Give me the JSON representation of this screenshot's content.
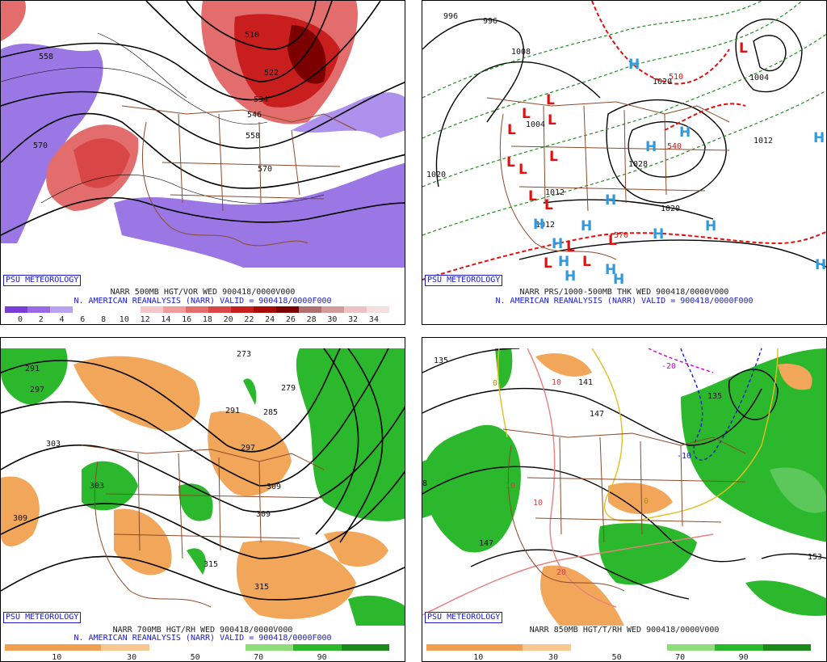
{
  "panels": [
    {
      "id": "p1",
      "footer": "PSU METEOROLOGY",
      "title": "NARR 500MB HGT/VOR WED 900418/0000V000",
      "subtitle": "N. AMERICAN REANALYSIS (NARR) VALID = 900418/0000F000",
      "colorbar": {
        "colors": [
          "#7a3cd6",
          "#9a6ae6",
          "#b9a2f0",
          "#ffffff",
          "#ffffff",
          "#ffffff",
          "#f3c7c7",
          "#ee9b9b",
          "#e36d6d",
          "#d84646",
          "#c81e1e",
          "#a80a0a",
          "#7d0000",
          "#b07070",
          "#d39a9a",
          "#eec2c2",
          "#f7dede"
        ],
        "ticks": [
          "0",
          "2",
          "4",
          "6",
          "8",
          "10",
          "12",
          "14",
          "16",
          "18",
          "20",
          "22",
          "24",
          "26",
          "28",
          "30",
          "32",
          "34"
        ]
      },
      "labels": [
        "558",
        "570",
        "510",
        "522",
        "534",
        "546",
        "558",
        "570"
      ]
    },
    {
      "id": "p2",
      "footer": "PSU METEOROLOGY",
      "title": "NARR PRS/1000-500MB THK WED 900418/0000V000",
      "subtitle": "N. AMERICAN REANALYSIS (NARR) VALID = 900418/0000F000",
      "labels": [
        "996",
        "996",
        "1020",
        "1008",
        "1028",
        "1020",
        "1012",
        "1004",
        "1012",
        "1020",
        "1012",
        "1004",
        "510",
        "540",
        "570"
      ],
      "lows": [
        "L",
        "L",
        "L",
        "L",
        "L",
        "L",
        "L",
        "L",
        "L",
        "L",
        "L",
        "L",
        "L",
        "L"
      ],
      "highs": [
        "H",
        "H",
        "H",
        "H",
        "H",
        "H",
        "H",
        "H",
        "H",
        "H",
        "H",
        "H",
        "H",
        "H",
        "H"
      ]
    },
    {
      "id": "p3",
      "footer": "PSU METEOROLOGY",
      "title": "NARR 700MB HGT/RH WED 900418/0000V000",
      "subtitle": "N. AMERICAN REANALYSIS (NARR) VALID = 900418/0000F000",
      "colorbar": {
        "colors": [
          "#f0a050",
          "#f0a050",
          "#f7c891",
          "#ffffff",
          "#ffffff",
          "#8fdc7a",
          "#2cb82c",
          "#1a8a1a"
        ],
        "ticks": [
          "10",
          "30",
          "50",
          "70",
          "90"
        ]
      },
      "labels": [
        "273",
        "279",
        "291",
        "297",
        "285",
        "291",
        "297",
        "303",
        "303",
        "309",
        "309",
        "309",
        "315",
        "315"
      ]
    },
    {
      "id": "p4",
      "footer": "PSU METEOROLOGY",
      "title": "NARR 850MB HGT/T/RH WED 900418/0000V000",
      "colorbar": {
        "colors": [
          "#f0a050",
          "#f0a050",
          "#f7c891",
          "#ffffff",
          "#ffffff",
          "#8fdc7a",
          "#2cb82c",
          "#1a8a1a"
        ],
        "ticks": [
          "10",
          "30",
          "50",
          "70",
          "90"
        ]
      },
      "labels": [
        "135",
        "135",
        "141",
        "147",
        "147",
        "153",
        "8"
      ],
      "temp_labels": [
        "10",
        "10",
        "10",
        "20",
        "-10",
        "-20",
        "0",
        "0"
      ]
    }
  ]
}
